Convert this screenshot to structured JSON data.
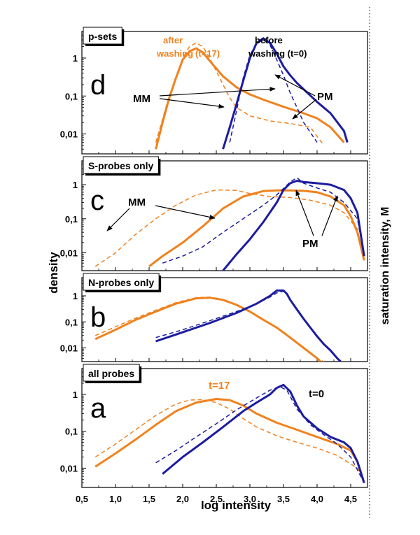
{
  "colors": {
    "after": "#f0821e",
    "before": "#1c1ca0",
    "text": "#000000",
    "accent_text": "#f0821e"
  },
  "chart_data": {
    "type": "line",
    "xlabel": "log intensity",
    "ylabel": "density",
    "right_label": "saturation intensity, M",
    "xlim": [
      0.5,
      4.75
    ],
    "x_ticks": [
      "0,5",
      "1,0",
      "1,5",
      "2,0",
      "2,5",
      "3,0",
      "3,5",
      "4,0",
      "4,5"
    ],
    "y_scale": "log",
    "ylim": [
      0.003,
      5
    ],
    "y_ticks": [
      "0,01",
      "0,1",
      "1"
    ],
    "saturation_line_x": 4.75,
    "panels": [
      {
        "id": "d",
        "letter": "d",
        "title": "p-sets",
        "annotations": {
          "after_line1": "after",
          "after_line2": "washing",
          "after_t": "(t=17)",
          "before_line1": "before",
          "before_line2": "washing (t=0)",
          "mm": "MM",
          "pm": "PM"
        },
        "series": [
          {
            "name": "after PM",
            "color": "after",
            "style": "solid",
            "x": [
              1.6,
              1.7,
              1.8,
              1.9,
              2.0,
              2.1,
              2.2,
              2.3,
              2.4,
              2.6,
              2.8,
              3.0,
              3.2,
              3.5,
              3.8,
              4.0,
              4.2,
              4.4
            ],
            "y": [
              0.004,
              0.02,
              0.09,
              0.3,
              0.9,
              1.5,
              1.8,
              1.4,
              0.85,
              0.33,
              0.17,
              0.11,
              0.08,
              0.052,
              0.035,
              0.026,
              0.015,
              0.006
            ]
          },
          {
            "name": "after MM",
            "color": "after",
            "style": "dashed",
            "x": [
              1.6,
              1.8,
              2.0,
              2.1,
              2.2,
              2.3,
              2.4,
              2.5,
              2.6,
              2.7,
              2.8,
              3.0,
              3.3,
              3.6,
              3.9,
              4.1
            ],
            "y": [
              0.006,
              0.1,
              1.0,
              2.0,
              2.5,
              2.0,
              1.0,
              0.45,
              0.2,
              0.09,
              0.05,
              0.03,
              0.022,
              0.019,
              0.015,
              0.005
            ]
          },
          {
            "name": "before PM",
            "color": "before",
            "style": "solid",
            "x": [
              2.6,
              2.7,
              2.8,
              2.9,
              3.0,
              3.1,
              3.2,
              3.3,
              3.4,
              3.5,
              3.6,
              3.7,
              3.8,
              4.0,
              4.2,
              4.4,
              4.45
            ],
            "y": [
              0.004,
              0.015,
              0.06,
              0.25,
              1.0,
              2.5,
              3.3,
              2.5,
              1.3,
              0.6,
              0.35,
              0.22,
              0.15,
              0.07,
              0.035,
              0.012,
              0.006
            ]
          },
          {
            "name": "before MM",
            "color": "before",
            "style": "dashed",
            "x": [
              2.7,
              2.8,
              2.9,
              3.0,
              3.1,
              3.2,
              3.3,
              3.4,
              3.5,
              3.6,
              3.7,
              3.8,
              3.9,
              4.0
            ],
            "y": [
              0.006,
              0.04,
              0.3,
              1.2,
              2.4,
              3.0,
              2.2,
              0.9,
              0.35,
              0.12,
              0.05,
              0.02,
              0.011,
              0.006
            ]
          }
        ]
      },
      {
        "id": "c",
        "letter": "c",
        "title": "S-probes only",
        "annotations": {
          "mm": "MM",
          "pm": "PM"
        },
        "series": [
          {
            "name": "after PM",
            "color": "after",
            "style": "solid",
            "x": [
              1.5,
              1.7,
              2.0,
              2.3,
              2.6,
              2.9,
              3.2,
              3.4,
              3.6,
              3.8,
              4.0,
              4.2,
              4.4,
              4.5,
              4.6,
              4.7
            ],
            "y": [
              0.004,
              0.008,
              0.02,
              0.06,
              0.2,
              0.45,
              0.65,
              0.68,
              0.68,
              0.66,
              0.6,
              0.45,
              0.25,
              0.12,
              0.04,
              0.006
            ]
          },
          {
            "name": "after MM",
            "color": "after",
            "style": "dashed",
            "x": [
              0.7,
              1.0,
              1.3,
              1.6,
              1.9,
              2.2,
              2.5,
              2.8,
              3.0,
              3.3,
              3.6,
              3.9,
              4.2,
              4.4,
              4.6,
              4.7
            ],
            "y": [
              0.004,
              0.01,
              0.035,
              0.1,
              0.25,
              0.5,
              0.7,
              0.68,
              0.55,
              0.45,
              0.42,
              0.35,
              0.25,
              0.15,
              0.05,
              0.006
            ]
          },
          {
            "name": "before PM",
            "color": "before",
            "style": "solid",
            "x": [
              2.6,
              2.8,
              3.0,
              3.2,
              3.4,
              3.5,
              3.6,
              3.7,
              3.8,
              4.0,
              4.2,
              4.4,
              4.5,
              4.6,
              4.7
            ],
            "y": [
              0.003,
              0.009,
              0.025,
              0.08,
              0.3,
              0.7,
              1.1,
              1.3,
              1.2,
              1.1,
              1.0,
              0.7,
              0.4,
              0.15,
              0.008
            ]
          },
          {
            "name": "before MM",
            "color": "before",
            "style": "dashed",
            "x": [
              1.7,
              2.0,
              2.3,
              2.6,
              2.9,
              3.2,
              3.4,
              3.6,
              3.7,
              3.8,
              4.0,
              4.2,
              4.4,
              4.6,
              4.7
            ],
            "y": [
              0.005,
              0.008,
              0.015,
              0.04,
              0.1,
              0.25,
              0.5,
              1.2,
              1.6,
              1.1,
              0.8,
              0.6,
              0.3,
              0.1,
              0.008
            ]
          }
        ]
      },
      {
        "id": "b",
        "letter": "b",
        "title": "N-probes only",
        "series": [
          {
            "name": "after PM",
            "color": "after",
            "style": "solid",
            "x": [
              0.7,
              1.0,
              1.3,
              1.6,
              1.9,
              2.2,
              2.4,
              2.6,
              2.8,
              3.0,
              3.2,
              3.4,
              3.6,
              3.8,
              4.0,
              4.05
            ],
            "y": [
              0.022,
              0.05,
              0.12,
              0.25,
              0.5,
              0.8,
              0.85,
              0.7,
              0.45,
              0.25,
              0.12,
              0.06,
              0.025,
              0.01,
              0.004,
              0.003
            ]
          },
          {
            "name": "after MM",
            "color": "after",
            "style": "dashed",
            "x": [
              0.7,
              1.0,
              1.3,
              1.6,
              1.9,
              2.2,
              2.4,
              2.6,
              2.8,
              3.0,
              3.2,
              3.4,
              3.6,
              3.8,
              4.0,
              4.1
            ],
            "y": [
              0.03,
              0.065,
              0.14,
              0.28,
              0.55,
              0.85,
              0.9,
              0.72,
              0.45,
              0.24,
              0.12,
              0.06,
              0.025,
              0.01,
              0.004,
              0.003
            ]
          },
          {
            "name": "before PM",
            "color": "before",
            "style": "solid",
            "x": [
              1.6,
              2.0,
              2.4,
              2.8,
              3.1,
              3.3,
              3.4,
              3.5,
              3.55,
              3.6,
              3.7,
              3.8,
              3.9,
              4.0,
              4.1,
              4.2,
              4.3,
              4.35
            ],
            "y": [
              0.018,
              0.04,
              0.09,
              0.22,
              0.5,
              1.0,
              1.6,
              1.6,
              1.2,
              0.7,
              0.3,
              0.13,
              0.06,
              0.028,
              0.014,
              0.008,
              0.004,
              0.003
            ]
          },
          {
            "name": "before MM",
            "color": "before",
            "style": "dashed",
            "x": [
              1.6,
              2.0,
              2.4,
              2.8,
              3.1,
              3.3,
              3.4,
              3.5
            ],
            "y": [
              0.025,
              0.05,
              0.11,
              0.25,
              0.5,
              0.9,
              1.3,
              1.5
            ]
          }
        ]
      },
      {
        "id": "a",
        "letter": "a",
        "title": "all probes",
        "annotations": {
          "t_after": "t=17",
          "t_before": "t=0"
        },
        "series": [
          {
            "name": "after PM",
            "color": "after",
            "style": "solid",
            "x": [
              0.7,
              1.0,
              1.3,
              1.6,
              1.9,
              2.2,
              2.5,
              2.7,
              2.9,
              3.1,
              3.4,
              3.7,
              4.0,
              4.3,
              4.5,
              4.6,
              4.7
            ],
            "y": [
              0.011,
              0.025,
              0.06,
              0.15,
              0.35,
              0.6,
              0.75,
              0.7,
              0.5,
              0.3,
              0.17,
              0.11,
              0.07,
              0.045,
              0.03,
              0.015,
              0.004
            ]
          },
          {
            "name": "after MM",
            "color": "after",
            "style": "dashed",
            "x": [
              0.7,
              1.0,
              1.3,
              1.6,
              1.9,
              2.1,
              2.3,
              2.5,
              2.7,
              2.9,
              3.1,
              3.4,
              3.7,
              4.0,
              4.3,
              4.6,
              4.7
            ],
            "y": [
              0.02,
              0.045,
              0.11,
              0.27,
              0.55,
              0.7,
              0.72,
              0.6,
              0.4,
              0.22,
              0.13,
              0.075,
              0.05,
              0.035,
              0.022,
              0.01,
              0.004
            ]
          },
          {
            "name": "before PM",
            "color": "before",
            "style": "solid",
            "x": [
              1.7,
              2.0,
              2.3,
              2.6,
              2.9,
              3.1,
              3.3,
              3.4,
              3.5,
              3.6,
              3.7,
              3.8,
              4.0,
              4.2,
              4.4,
              4.5,
              4.6,
              4.7
            ],
            "y": [
              0.007,
              0.02,
              0.05,
              0.13,
              0.35,
              0.6,
              1.0,
              1.5,
              1.8,
              1.2,
              0.5,
              0.25,
              0.12,
              0.07,
              0.05,
              0.035,
              0.015,
              0.004
            ]
          },
          {
            "name": "before MM",
            "color": "before",
            "style": "dashed",
            "x": [
              1.6,
              1.9,
              2.2,
              2.5,
              2.8,
              3.1,
              3.3,
              3.45,
              3.55,
              3.7,
              3.9,
              4.1,
              4.3,
              4.5,
              4.7
            ],
            "y": [
              0.014,
              0.03,
              0.07,
              0.16,
              0.38,
              0.8,
              1.3,
              1.6,
              1.3,
              0.4,
              0.15,
              0.08,
              0.045,
              0.02,
              0.004
            ]
          }
        ]
      }
    ]
  }
}
